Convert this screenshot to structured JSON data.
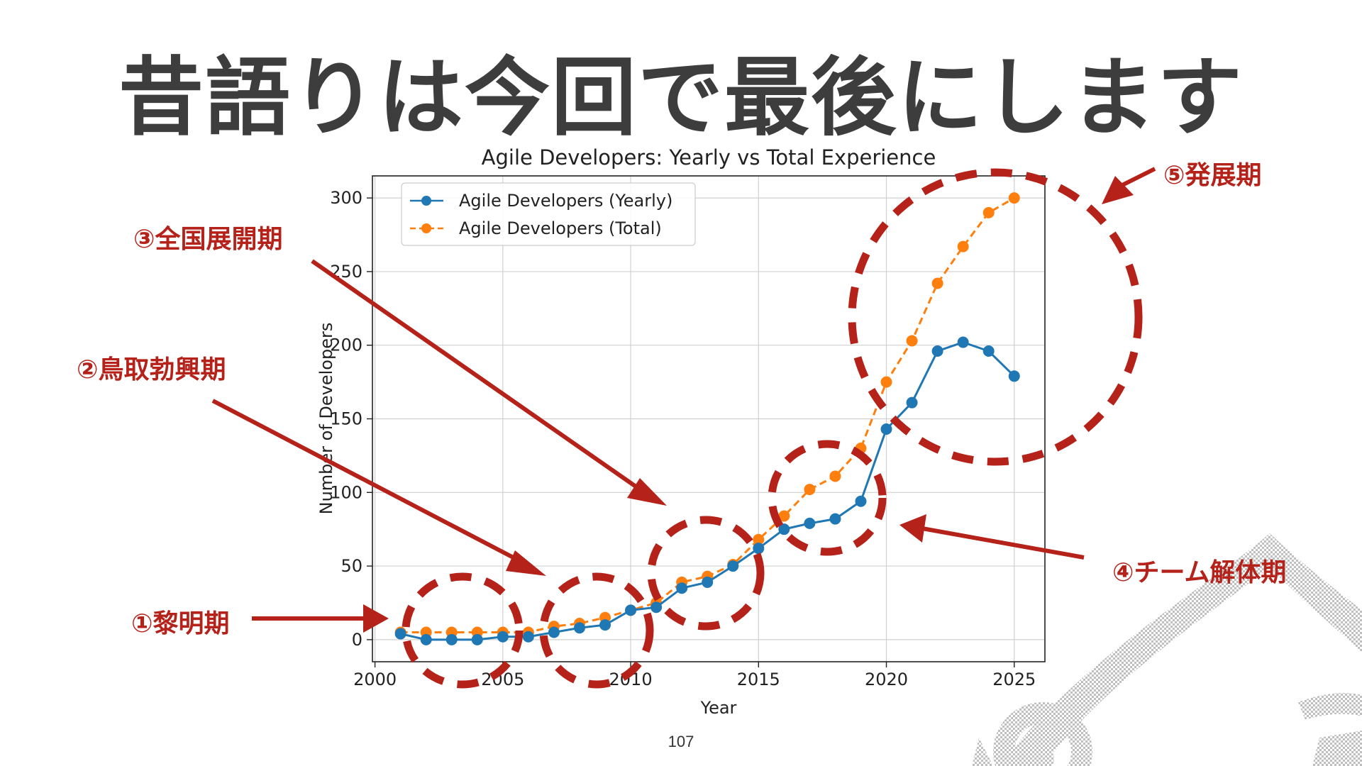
{
  "slide": {
    "title": "昔語りは今回で最後にします",
    "page_number": "107"
  },
  "annotations": [
    {
      "label": "①黎明期"
    },
    {
      "label": "②鳥取勃興期"
    },
    {
      "label": "③全国展開期"
    },
    {
      "label": "④チーム解体期"
    },
    {
      "label": "⑤発展期"
    }
  ],
  "colors": {
    "title": "#3d3d3d",
    "annotation": "#b5221a",
    "yearly": "#1f77b4",
    "total": "#ff7f0e"
  },
  "chart_data": {
    "type": "line",
    "title": "Agile Developers: Yearly vs Total Experience",
    "xlabel": "Year",
    "ylabel": "Number of Developers",
    "xlim": [
      1999.9,
      2026.2
    ],
    "ylim": [
      -15,
      315
    ],
    "xticks": [
      2000,
      2005,
      2010,
      2015,
      2020,
      2025
    ],
    "yticks": [
      0,
      50,
      100,
      150,
      200,
      250,
      300
    ],
    "grid": true,
    "legend_position": "top-left",
    "x": [
      2001,
      2002,
      2003,
      2004,
      2005,
      2006,
      2007,
      2008,
      2009,
      2010,
      2011,
      2012,
      2013,
      2014,
      2015,
      2016,
      2017,
      2018,
      2019,
      2020,
      2021,
      2022,
      2023,
      2024,
      2025
    ],
    "series": [
      {
        "name": "Agile Developers (Yearly)",
        "style": "solid",
        "values": [
          4,
          0,
          0,
          0,
          2,
          2,
          5,
          8,
          10,
          20,
          22,
          35,
          39,
          50,
          62,
          75,
          79,
          82,
          94,
          143,
          161,
          196,
          202,
          196,
          179
        ]
      },
      {
        "name": "Agile Developers (Total)",
        "style": "dashed",
        "values": [
          5,
          5,
          5,
          5,
          5,
          5,
          9,
          11,
          15,
          20,
          25,
          39,
          43,
          51,
          68,
          84,
          102,
          111,
          130,
          175,
          203,
          242,
          267,
          290,
          300
        ]
      }
    ]
  }
}
